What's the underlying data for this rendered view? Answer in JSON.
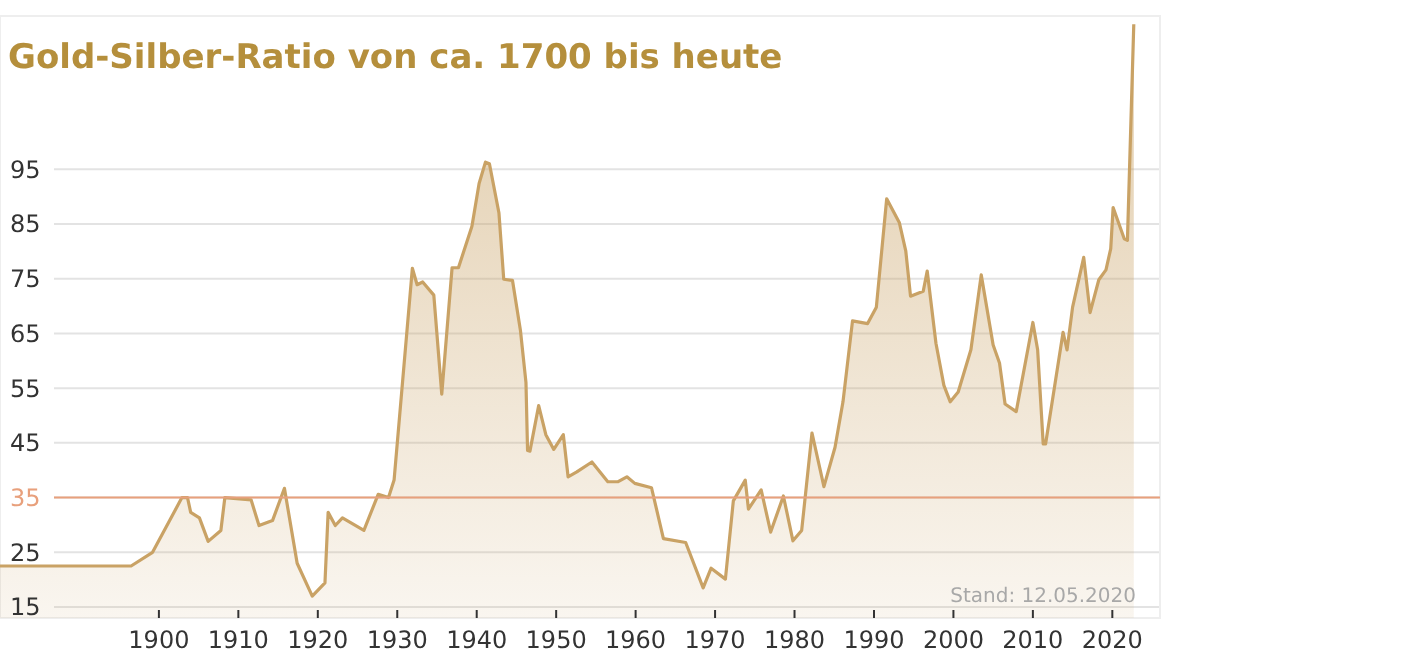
{
  "chart_data": {
    "type": "area",
    "title": "Gold-Silber-Ratio von ca. 1700 bis heute",
    "x": [
      1880,
      1896.5,
      1899.2,
      1902.9,
      1903.6,
      1904,
      1905.1,
      1906.2,
      1907.8,
      1908.3,
      1911.6,
      1912.6,
      1914.3,
      1915.8,
      1917.4,
      1919.3,
      1920.9,
      1921.3,
      1922.2,
      1923.1,
      1925.8,
      1927.6,
      1928.9,
      1929.6,
      1931.9,
      1932.5,
      1933.2,
      1934.6,
      1935.6,
      1936.9,
      1937.7,
      1939.4,
      1940.3,
      1941.1,
      1941.6,
      1942.8,
      1943.4,
      1944.5,
      1945.5,
      1946.2,
      1946.4,
      1946.7,
      1947.8,
      1948.7,
      1949.7,
      1950.9,
      1951.5,
      1952.6,
      1954.5,
      1956.5,
      1957.8,
      1958.9,
      1959.9,
      1962,
      1963.5,
      1966.3,
      1968.5,
      1969.5,
      1971.3,
      1972.3,
      1973.8,
      1974.2,
      1975.8,
      1977,
      1978.6,
      1979.8,
      1980.9,
      1982.2,
      1983.7,
      1985.1,
      1986.1,
      1987.3,
      1989.2,
      1990.3,
      1991.6,
      1993.2,
      1994,
      1994.6,
      1996.2,
      1996.7,
      1997.8,
      1998.8,
      1999.6,
      2000.6,
      2002.2,
      2003.5,
      2005,
      2005.8,
      2006.5,
      2007.9,
      2010,
      2010.6,
      2011.3,
      2011.6,
      2013.8,
      2014.3,
      2015,
      2016.4,
      2017.2,
      2018.3,
      2019.2,
      2019.8,
      2020.1,
      2021.5,
      2021.9,
      2022.7
    ],
    "series": [
      {
        "color": "#c9a265",
        "values": [
          22.5,
          22.5,
          25,
          35,
          35,
          32.3,
          31.3,
          27,
          29,
          35,
          34.6,
          29.9,
          30.8,
          36.7,
          23,
          17,
          19.4,
          32.3,
          29.9,
          31.3,
          29,
          35.6,
          35,
          38.2,
          76.9,
          73.9,
          74.4,
          72,
          53.9,
          77,
          77,
          84.6,
          92.4,
          96.3,
          96,
          87,
          74.9,
          74.7,
          65.6,
          56,
          43.6,
          43.5,
          51.8,
          46.5,
          43.8,
          46.5,
          38.8,
          39.7,
          41.5,
          37.9,
          37.9,
          38.8,
          37.6,
          36.8,
          27.5,
          26.8,
          18.5,
          22.1,
          20.1,
          34.4,
          38.2,
          32.9,
          36.4,
          28.7,
          35.3,
          27.1,
          29,
          46.8,
          37,
          44.2,
          52.5,
          67.3,
          66.8,
          69.8,
          89.6,
          85.2,
          80.1,
          71.8,
          72.7,
          76.4,
          63.2,
          55.5,
          52.5,
          54.3,
          62,
          75.7,
          62.9,
          59.6,
          52.1,
          50.7,
          67,
          62,
          44.8,
          44.8,
          65.2,
          62,
          69.8,
          78.9,
          68.8,
          74.8,
          76.6,
          80.5,
          88,
          82.3,
          82,
          121.5
        ]
      }
    ],
    "xlim": [
      1880,
      2026
    ],
    "ylim": [
      13,
      123
    ],
    "xticks": [
      1900,
      1910,
      1920,
      1930,
      1940,
      1950,
      1960,
      1970,
      1980,
      1990,
      2000,
      2010,
      2020
    ],
    "yticks": [
      15,
      25,
      35,
      45,
      55,
      65,
      75,
      85,
      95
    ],
    "grid": "y",
    "ref_lines": [
      {
        "axis": "y",
        "value": 35,
        "color": "#e8a07c"
      }
    ],
    "annotations": [
      "Stand: 12.05.2020"
    ]
  }
}
